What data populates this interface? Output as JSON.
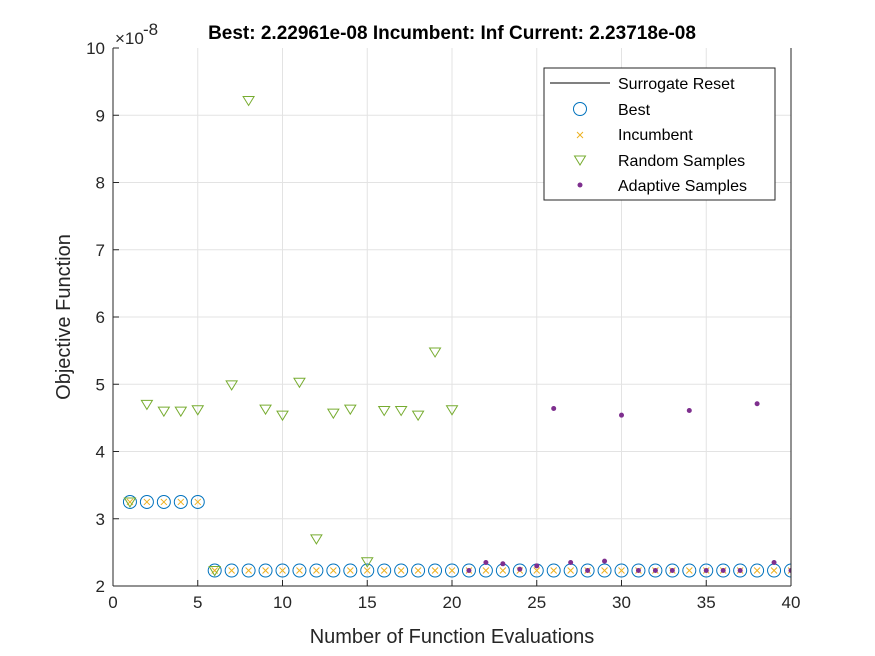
{
  "chart_data": {
    "type": "scatter",
    "title": "Best: 2.22961e-08 Incumbent: Inf Current: 2.23718e-08",
    "xlabel": "Number of Function Evaluations",
    "ylabel": "Objective Function",
    "y_exponent_label": "×10",
    "y_exponent": "-8",
    "xlim": [
      0,
      40
    ],
    "ylim": [
      2,
      10
    ],
    "xticks": [
      0,
      5,
      10,
      15,
      20,
      25,
      30,
      35,
      40
    ],
    "yticks": [
      2,
      3,
      4,
      5,
      6,
      7,
      8,
      9,
      10
    ],
    "grid": true,
    "legend_position": "top-right",
    "legend": [
      "Surrogate Reset",
      "Best",
      "Incumbent",
      "Random Samples",
      "Adaptive Samples"
    ],
    "colors": {
      "best": "#0072BD",
      "incumbent": "#EDB120",
      "random": "#77AC30",
      "adaptive": "#7E2F8E",
      "reset": "#000000"
    },
    "series": [
      {
        "name": "Best",
        "marker": "circle",
        "x": [
          1,
          2,
          3,
          4,
          5,
          6,
          7,
          8,
          9,
          10,
          11,
          12,
          13,
          14,
          15,
          16,
          17,
          18,
          19,
          20,
          21,
          22,
          23,
          24,
          25,
          26,
          27,
          28,
          29,
          30,
          31,
          32,
          33,
          34,
          35,
          36,
          37,
          38,
          39,
          40
        ],
        "y": [
          3.25,
          3.25,
          3.25,
          3.25,
          3.25,
          2.23,
          2.23,
          2.23,
          2.23,
          2.23,
          2.23,
          2.23,
          2.23,
          2.23,
          2.23,
          2.23,
          2.23,
          2.23,
          2.23,
          2.23,
          2.23,
          2.23,
          2.23,
          2.23,
          2.23,
          2.23,
          2.23,
          2.23,
          2.23,
          2.23,
          2.23,
          2.23,
          2.23,
          2.23,
          2.23,
          2.23,
          2.23,
          2.23,
          2.23,
          2.23
        ]
      },
      {
        "name": "Incumbent",
        "marker": "x",
        "x": [
          1,
          2,
          3,
          4,
          5,
          6,
          7,
          8,
          9,
          10,
          11,
          12,
          13,
          14,
          15,
          16,
          17,
          18,
          19,
          20,
          21,
          22,
          23,
          24,
          25,
          26,
          27,
          28,
          29,
          30,
          31,
          32,
          33,
          34,
          35,
          36,
          37,
          38,
          39,
          40
        ],
        "y": [
          3.25,
          3.25,
          3.25,
          3.25,
          3.25,
          2.23,
          2.23,
          2.23,
          2.23,
          2.23,
          2.23,
          2.23,
          2.23,
          2.23,
          2.23,
          2.23,
          2.23,
          2.23,
          2.23,
          2.23,
          2.23,
          2.23,
          2.23,
          2.23,
          2.23,
          2.23,
          2.23,
          2.23,
          2.23,
          2.23,
          2.23,
          2.23,
          2.23,
          2.23,
          2.23,
          2.23,
          2.23,
          2.23,
          2.23,
          2.23
        ]
      },
      {
        "name": "Random Samples",
        "marker": "triangle-down",
        "x": [
          1,
          2,
          3,
          4,
          5,
          6,
          7,
          8,
          9,
          10,
          11,
          12,
          13,
          14,
          15,
          16,
          17,
          18,
          19,
          20
        ],
        "y": [
          3.25,
          4.7,
          4.6,
          4.6,
          4.62,
          2.23,
          4.99,
          9.22,
          4.63,
          4.54,
          5.03,
          2.7,
          4.57,
          4.63,
          2.36,
          4.61,
          4.61,
          4.54,
          5.48,
          4.62
        ]
      },
      {
        "name": "Adaptive Samples",
        "marker": "dot",
        "x": [
          21,
          22,
          23,
          24,
          25,
          26,
          27,
          28,
          29,
          30,
          31,
          32,
          33,
          34,
          35,
          36,
          37,
          38,
          39,
          40
        ],
        "y": [
          2.23,
          2.35,
          2.33,
          2.25,
          2.3,
          4.64,
          2.35,
          2.23,
          2.37,
          4.54,
          2.23,
          2.23,
          2.23,
          4.61,
          2.23,
          2.23,
          2.23,
          4.71,
          2.35,
          2.23
        ]
      }
    ]
  }
}
